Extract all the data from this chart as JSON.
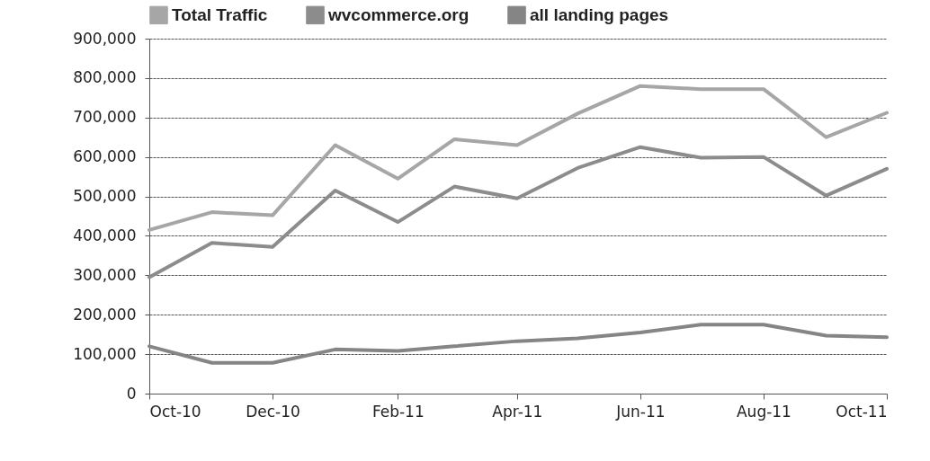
{
  "chart_data": {
    "type": "line",
    "x": [
      "2010-10",
      "2010-11",
      "2010-12",
      "2011-01",
      "2011-02",
      "2011-03",
      "2011-04",
      "2011-05",
      "2011-06",
      "2011-07",
      "2011-08",
      "2011-09",
      "2011-10"
    ],
    "series": [
      {
        "name": "Total Traffic",
        "color": "#a6a6a6",
        "values": [
          415000,
          460000,
          452000,
          630000,
          545000,
          645000,
          630000,
          710000,
          780000,
          772000,
          772000,
          650000,
          712000
        ]
      },
      {
        "name": "wvcommerce.org",
        "color": "#8c8c8c",
        "values": [
          295000,
          382000,
          372000,
          515000,
          435000,
          525000,
          495000,
          572000,
          625000,
          598000,
          600000,
          502000,
          570000
        ]
      },
      {
        "name": "all landing pages",
        "color": "#858585",
        "values": [
          120000,
          78000,
          78000,
          112000,
          108000,
          120000,
          133000,
          140000,
          155000,
          175000,
          175000,
          147000,
          143000
        ]
      }
    ],
    "ylim": [
      0,
      900000
    ],
    "yticks": [
      0,
      {
        "value": 100000,
        "label": "100,000"
      },
      {
        "value": 200000,
        "label": "200,000"
      },
      {
        "value": 300000,
        "label": "300,000"
      },
      {
        "value": 400000,
        "label": "400,000"
      },
      {
        "value": 500000,
        "label": "500,000"
      },
      {
        "value": 600000,
        "label": "600,000"
      },
      {
        "value": 700000,
        "label": "700,000"
      },
      {
        "value": 800000,
        "label": "800,000"
      },
      {
        "value": 900000,
        "label": "900,000"
      }
    ],
    "xlim": [
      "2010-10",
      "2011-10"
    ],
    "xticks": [
      {
        "value": "2010-10",
        "label": "Oct-10"
      },
      {
        "value": "2010-12",
        "label": "Dec-10"
      },
      {
        "value": "2011-02",
        "label": "Feb-11"
      },
      {
        "value": "2011-04",
        "label": "Apr-11"
      },
      {
        "value": "2011-06",
        "label": "Jun-11"
      },
      {
        "value": "2011-08",
        "label": "Aug-11"
      },
      {
        "value": "2011-10",
        "label": "Oct-11"
      }
    ],
    "grid": "y",
    "legend": "top",
    "marker": "none",
    "line_style": "solid"
  }
}
